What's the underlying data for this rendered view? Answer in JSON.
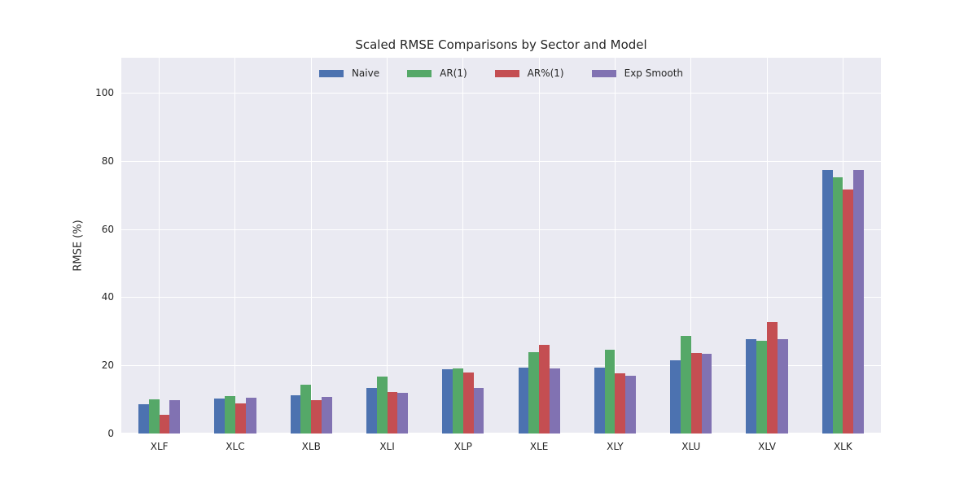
{
  "chart_data": {
    "type": "bar",
    "title": "Scaled RMSE Comparisons by Sector and Model",
    "xlabel": "",
    "ylabel": "RMSE (%)",
    "categories": [
      "XLF",
      "XLC",
      "XLB",
      "XLI",
      "XLP",
      "XLE",
      "XLY",
      "XLU",
      "XLV",
      "XLK"
    ],
    "series": [
      {
        "name": "Naive",
        "color": "#4C72B0",
        "values": [
          8.7,
          10.2,
          11.2,
          13.4,
          18.8,
          19.3,
          19.3,
          21.5,
          27.8,
          77.3
        ]
      },
      {
        "name": "AR(1)",
        "color": "#55A868",
        "values": [
          10.0,
          11.0,
          14.4,
          16.7,
          19.1,
          23.8,
          24.7,
          28.6,
          27.2,
          75.2
        ]
      },
      {
        "name": "AR%(1)",
        "color": "#C44E52",
        "values": [
          5.6,
          8.8,
          9.8,
          12.1,
          18.0,
          26.0,
          17.6,
          23.7,
          32.8,
          71.7
        ]
      },
      {
        "name": "Exp Smooth",
        "color": "#8172B2",
        "values": [
          9.8,
          10.5,
          10.7,
          11.9,
          13.4,
          19.1,
          16.9,
          23.5,
          27.8,
          77.3
        ]
      }
    ],
    "yticks": [
      0,
      20,
      40,
      60,
      80,
      100
    ],
    "ylim": [
      0,
      110.3
    ],
    "grid": true,
    "legend_position": "top-center",
    "colors": {
      "plot_background": "#EAEAF2",
      "grid": "#FFFFFF",
      "text": "#262626",
      "figure_background": "#FFFFFF"
    }
  }
}
